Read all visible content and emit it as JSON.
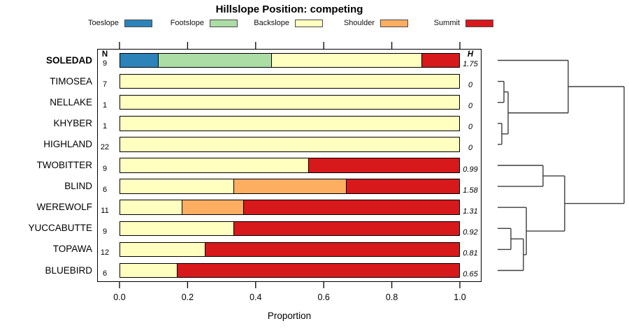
{
  "title": "Hillslope Position: competing",
  "columns": {
    "n": "N",
    "h": "H"
  },
  "axis": {
    "label": "Proportion",
    "ticks": [
      "0.0",
      "0.2",
      "0.4",
      "0.6",
      "0.8",
      "1.0"
    ]
  },
  "legend": {
    "items": [
      {
        "label": "Toeslope",
        "color": "#2B83BA"
      },
      {
        "label": "Footslope",
        "color": "#ABDDA4"
      },
      {
        "label": "Backslope",
        "color": "#FFFFBF"
      },
      {
        "label": "Shoulder",
        "color": "#FDAE61"
      },
      {
        "label": "Summit",
        "color": "#D7191C"
      }
    ]
  },
  "chart_data": {
    "type": "bar",
    "variant": "horizontal-stacked-proportion-with-dendrogram",
    "title": "Hillslope Position: competing",
    "xlabel": "Proportion",
    "xlim": [
      0,
      1
    ],
    "xticks": [
      0.0,
      0.2,
      0.4,
      0.6,
      0.8,
      1.0
    ],
    "grid": false,
    "categories": [
      "Toeslope",
      "Footslope",
      "Backslope",
      "Shoulder",
      "Summit"
    ],
    "colors": [
      "#2B83BA",
      "#ABDDA4",
      "#FFFFBF",
      "#FDAE61",
      "#D7191C"
    ],
    "rows": [
      {
        "label": "SOLEDAD",
        "n": 9,
        "h": "1.75",
        "emphasis": true,
        "values": [
          0.1111,
          0.3333,
          0.4445,
          0,
          0.1111
        ]
      },
      {
        "label": "TIMOSEA",
        "n": 7,
        "h": "0",
        "emphasis": false,
        "values": [
          0,
          0,
          1,
          0,
          0
        ]
      },
      {
        "label": "NELLAKE",
        "n": 1,
        "h": "0",
        "emphasis": false,
        "values": [
          0,
          0,
          1,
          0,
          0
        ]
      },
      {
        "label": "KHYBER",
        "n": 1,
        "h": "0",
        "emphasis": false,
        "values": [
          0,
          0,
          1,
          0,
          0
        ]
      },
      {
        "label": "HIGHLAND",
        "n": 22,
        "h": "0",
        "emphasis": false,
        "values": [
          0,
          0,
          1,
          0,
          0
        ]
      },
      {
        "label": "TWOBITTER",
        "n": 9,
        "h": "0.99",
        "emphasis": false,
        "values": [
          0,
          0,
          0.5556,
          0,
          0.4444
        ]
      },
      {
        "label": "BLIND",
        "n": 6,
        "h": "1.58",
        "emphasis": false,
        "values": [
          0,
          0,
          0.3333,
          0.3334,
          0.3333
        ]
      },
      {
        "label": "WEREWOLF",
        "n": 11,
        "h": "1.31",
        "emphasis": false,
        "values": [
          0,
          0,
          0.1818,
          0.1818,
          0.6364
        ]
      },
      {
        "label": "YUCCABUTTE",
        "n": 9,
        "h": "0.92",
        "emphasis": false,
        "values": [
          0,
          0,
          0.3333,
          0,
          0.6667
        ]
      },
      {
        "label": "TOPAWA",
        "n": 12,
        "h": "0.81",
        "emphasis": false,
        "values": [
          0,
          0,
          0.25,
          0,
          0.75
        ]
      },
      {
        "label": "BLUEBIRD",
        "n": 6,
        "h": "0.65",
        "emphasis": false,
        "values": [
          0,
          0,
          0.1667,
          0,
          0.8333
        ]
      }
    ],
    "dendrogram": {
      "legend_position": "right",
      "merges": [
        {
          "id": "m1",
          "a": "L1",
          "b": "L2",
          "height": 0.05
        },
        {
          "id": "m2",
          "a": "L3",
          "b": "L4",
          "height": 0.033
        },
        {
          "id": "m3",
          "a": "m1",
          "b": "m2",
          "height": 0.083
        },
        {
          "id": "m4",
          "a": "L0",
          "b": "m3",
          "height": 0.558
        },
        {
          "id": "m5",
          "a": "L5",
          "b": "L6",
          "height": 0.359
        },
        {
          "id": "m6",
          "a": "L8",
          "b": "L9",
          "height": 0.105
        },
        {
          "id": "m7",
          "a": "m6",
          "b": "L10",
          "height": 0.204
        },
        {
          "id": "m8",
          "a": "L7",
          "b": "m7",
          "height": 0.227
        },
        {
          "id": "m9",
          "a": "m5",
          "b": "m8",
          "height": 0.53
        },
        {
          "id": "m10",
          "a": "m4",
          "b": "m9",
          "height": 1.0
        }
      ]
    }
  }
}
